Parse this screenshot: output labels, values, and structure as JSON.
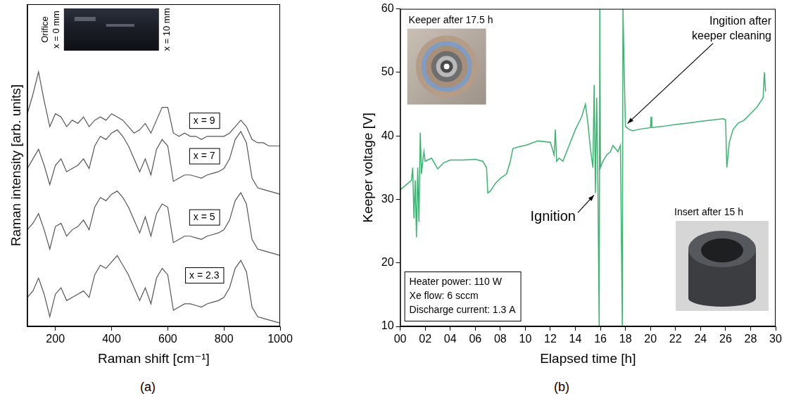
{
  "chart_data": [
    {
      "type": "line",
      "panel_label": "(a)",
      "x_label": "Raman shift [cm⁻¹]",
      "y_label": "Raman intensity [arb. units]",
      "x": [
        100,
        120,
        140,
        160,
        180,
        200,
        220,
        240,
        260,
        280,
        300,
        320,
        340,
        360,
        380,
        400,
        420,
        440,
        460,
        480,
        500,
        520,
        540,
        560,
        580,
        600,
        620,
        640,
        660,
        680,
        700,
        720,
        740,
        760,
        780,
        800,
        820,
        840,
        860,
        880,
        900,
        920,
        940,
        960,
        980,
        1000
      ],
      "series": [
        {
          "name": "x = 9",
          "color": "#555555",
          "values": [
            6.6,
            7.2,
            7.9,
            7.0,
            6.2,
            6.6,
            6.5,
            6.2,
            6.4,
            6.3,
            6.5,
            6.2,
            6.4,
            6.5,
            6.4,
            6.6,
            6.5,
            6.4,
            6.2,
            6.0,
            6.1,
            6.3,
            6.0,
            6.4,
            6.8,
            6.8,
            6.0,
            5.9,
            6.0,
            5.9,
            5.9,
            5.8,
            5.9,
            5.9,
            5.9,
            5.9,
            6.0,
            6.2,
            6.4,
            6.2,
            5.8,
            5.7,
            5.7,
            5.6,
            5.6,
            5.6
          ]
        },
        {
          "name": "x = 7",
          "color": "#555555",
          "values": [
            4.9,
            5.2,
            5.5,
            5.0,
            4.4,
            5.0,
            5.2,
            4.8,
            4.9,
            5.0,
            5.2,
            4.9,
            5.6,
            5.9,
            5.8,
            6.0,
            6.1,
            5.9,
            5.6,
            5.2,
            4.8,
            5.2,
            4.7,
            5.5,
            5.8,
            5.6,
            4.5,
            4.6,
            4.7,
            4.7,
            4.65,
            4.6,
            4.7,
            4.75,
            4.8,
            4.9,
            5.2,
            5.8,
            6.05,
            5.7,
            4.6,
            4.3,
            4.25,
            4.2,
            4.15,
            4.1
          ]
        },
        {
          "name": "x = 5",
          "color": "#555555",
          "values": [
            3.0,
            3.2,
            3.5,
            3.0,
            2.4,
            3.1,
            3.2,
            2.8,
            3.0,
            3.1,
            3.3,
            3.0,
            3.7,
            4.0,
            3.9,
            4.1,
            4.2,
            4.0,
            3.7,
            3.3,
            2.9,
            3.4,
            2.8,
            3.5,
            3.8,
            3.7,
            2.6,
            2.7,
            2.8,
            2.8,
            2.75,
            2.7,
            2.8,
            2.85,
            2.9,
            3.0,
            3.3,
            3.9,
            4.15,
            3.8,
            2.7,
            2.4,
            2.35,
            2.3,
            2.25,
            2.2
          ]
        },
        {
          "name": "x = 2.3",
          "color": "#555555",
          "values": [
            0.9,
            1.1,
            1.5,
            1.0,
            0.3,
            1.0,
            1.2,
            0.8,
            0.9,
            1.0,
            1.1,
            0.9,
            1.6,
            1.9,
            1.8,
            2.0,
            2.2,
            1.9,
            1.6,
            1.2,
            0.8,
            1.2,
            0.7,
            1.5,
            1.8,
            1.6,
            0.5,
            0.6,
            0.7,
            0.7,
            0.65,
            0.6,
            0.7,
            0.75,
            0.8,
            0.9,
            1.2,
            1.8,
            2.05,
            1.7,
            0.6,
            0.3,
            0.25,
            0.2,
            0.15,
            0.1
          ]
        }
      ],
      "xlim": [
        100,
        1000
      ],
      "xticks": [
        200,
        400,
        600,
        800,
        1000
      ],
      "ylim": [
        0,
        10
      ],
      "tick_labels": "x",
      "grid": false,
      "inset": {
        "left_labels": [
          "Orifice",
          "x = 0 mm"
        ],
        "right_label": "x = 10 mm"
      }
    },
    {
      "type": "line",
      "panel_label": "(b)",
      "x_label": "Elapsed time [h]",
      "y_label": "Keeper voltage [V]",
      "color": "#3cb371",
      "x": [
        0,
        0.3,
        0.6,
        0.9,
        1.0,
        1.1,
        1.2,
        1.3,
        1.4,
        1.5,
        1.6,
        1.7,
        1.8,
        1.9,
        2.0,
        2.5,
        3.0,
        3.5,
        4.0,
        5.0,
        6.0,
        6.6,
        6.9,
        7.0,
        7.2,
        7.6,
        8.0,
        8.5,
        8.8,
        9.0,
        9.5,
        10.0,
        11.0,
        12.0,
        12.3,
        12.4,
        12.5,
        12.7,
        13.0,
        13.5,
        14.0,
        14.5,
        14.8,
        15.0,
        15.2,
        15.4,
        15.5,
        15.6,
        15.7,
        15.8,
        15.9,
        15.95,
        16.0,
        16.2,
        16.5,
        16.8,
        17.0,
        17.2,
        17.4,
        17.6,
        17.75,
        17.8,
        17.9,
        18.0,
        18.3,
        18.6,
        19.0,
        20.0,
        20.05,
        20.1,
        21.0,
        22.0,
        23.0,
        24.0,
        25.0,
        25.8,
        26.0,
        26.1,
        26.3,
        26.6,
        27.0,
        27.5,
        28.0,
        28.5,
        29.0,
        29.1,
        29.2
      ],
      "values": [
        31.5,
        32,
        32.5,
        33,
        35,
        27,
        33,
        24,
        35,
        26.5,
        40.5,
        34,
        36,
        37.5,
        36,
        36.5,
        34.8,
        35.8,
        36.2,
        36.2,
        36.3,
        36,
        35,
        31,
        31.3,
        32.5,
        33.3,
        34,
        36,
        38,
        38.3,
        38.5,
        39.2,
        39,
        37,
        41,
        36,
        36.5,
        36,
        38.5,
        41,
        43,
        45,
        42,
        38,
        35,
        48,
        31,
        46,
        32,
        10,
        60,
        35,
        36,
        37,
        37.5,
        38.5,
        38,
        37.5,
        38.5,
        10,
        60,
        50,
        41.5,
        41,
        40.8,
        41,
        41.3,
        43,
        41.3,
        41.5,
        41.8,
        42,
        42.3,
        42.5,
        42.7,
        42.5,
        35,
        39,
        41,
        42,
        42.5,
        43.5,
        44.5,
        46,
        50,
        47
      ],
      "xlim": [
        0,
        30
      ],
      "xticks": [
        {
          "value": 0,
          "label": "00"
        },
        {
          "value": 2,
          "label": "02"
        },
        {
          "value": 4,
          "label": "04"
        },
        {
          "value": 6,
          "label": "06"
        },
        {
          "value": 8,
          "label": "08"
        },
        10,
        12,
        14,
        16,
        18,
        20,
        22,
        24,
        26,
        28,
        30
      ],
      "ylim": [
        10,
        60
      ],
      "yticks": [
        10,
        20,
        30,
        40,
        50,
        60
      ],
      "grid": false,
      "annotations": [
        {
          "text": "Ignition",
          "x": 15.6,
          "y": 31
        },
        {
          "text": [
            "Ingition after",
            "keeper cleaning"
          ],
          "x": 18.0,
          "y": 41.5
        }
      ],
      "insets": [
        {
          "text": "Keeper after 17.5 h"
        },
        {
          "text": "Insert after 15 h"
        }
      ],
      "info_box": [
        "Heater power: 110 W",
        "Xe flow: 6 sccm",
        "Discharge current: 1.3 A"
      ]
    }
  ]
}
